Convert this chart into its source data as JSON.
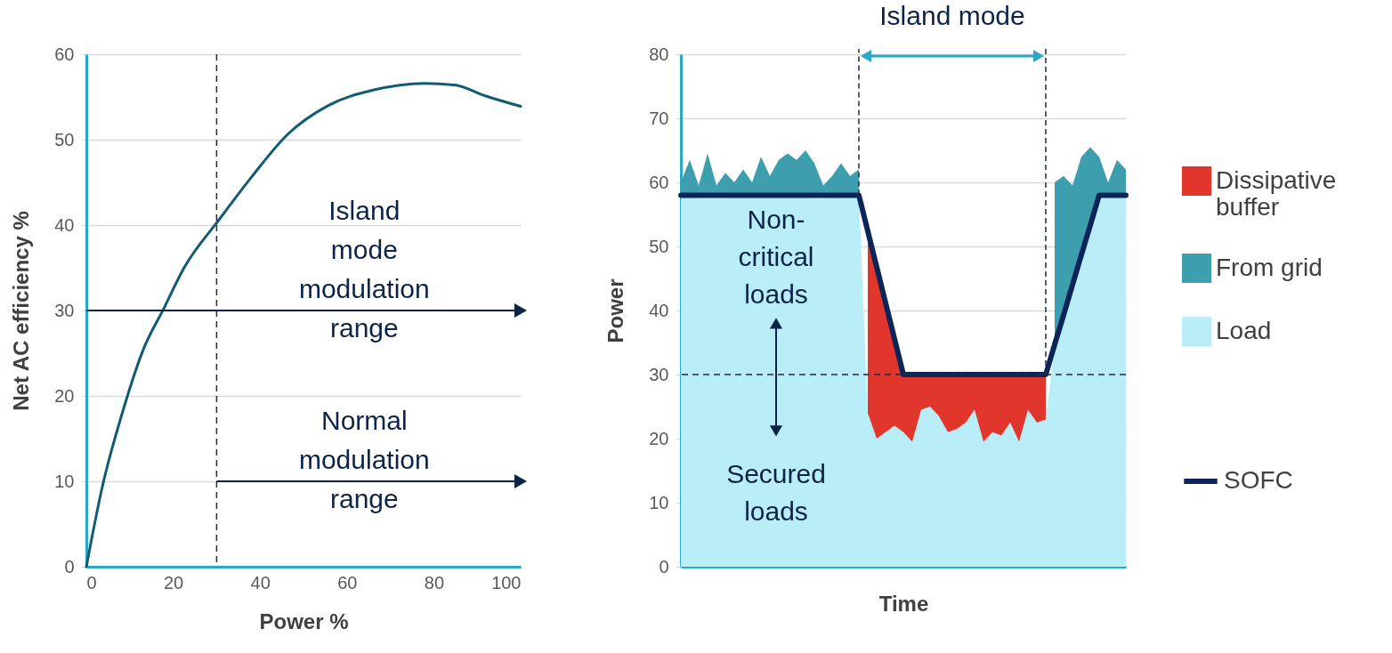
{
  "chart_data": [
    {
      "type": "line",
      "xlabel": "Power %",
      "ylabel": "Net AC efficiency %",
      "xlim": [
        0,
        100
      ],
      "xticks": [
        0,
        20,
        40,
        60,
        80,
        100
      ],
      "ylim": [
        0,
        60
      ],
      "yticks": [
        0,
        10,
        20,
        30,
        40,
        50,
        60
      ],
      "grid": "y",
      "x": [
        0,
        3.7,
        8.4,
        13.1,
        17.8,
        22.5,
        30.5,
        38.3,
        46.3,
        55.7,
        66,
        77.9,
        84.8,
        92,
        100
      ],
      "series": [
        {
          "color": "#115b73",
          "values": [
            0,
            9.4,
            18.2,
            25.4,
            30.2,
            35,
            40.6,
            45.8,
            50.6,
            54,
            55.8,
            56.6,
            56.4,
            55.1,
            53.9
          ]
        }
      ],
      "ref_lines": [
        {
          "axis": "x",
          "value": 30,
          "line_style": "dashed",
          "color": "#1f2d3d"
        }
      ],
      "annotations": [
        "Island mode modulation range",
        "Normal modulation range"
      ]
    },
    {
      "type": "area",
      "stacked": true,
      "xlabel": "Time",
      "ylabel": "Power",
      "ylim": [
        0,
        80
      ],
      "yticks": [
        0,
        10,
        20,
        30,
        40,
        50,
        60,
        70,
        80
      ],
      "grid": "y",
      "tick_labels": "y",
      "legend": "right",
      "categories": [
        null,
        null,
        null,
        null,
        null,
        null,
        null,
        null,
        null,
        null,
        null,
        null,
        null,
        null,
        null,
        null,
        null,
        null,
        null,
        null,
        null,
        null,
        null,
        null,
        null,
        null,
        null,
        null,
        null,
        null,
        null,
        null,
        null,
        null,
        null,
        null,
        null,
        null,
        null,
        null,
        null,
        null,
        null,
        null,
        null,
        null,
        null,
        null,
        null,
        null,
        null
      ],
      "series": [
        {
          "name": "Load",
          "type": "area",
          "color": "#b9eef8",
          "values": [
            58,
            58,
            58,
            58,
            58,
            58,
            58,
            58,
            58,
            58,
            58,
            58,
            58,
            58,
            58,
            58,
            58,
            58,
            58,
            58,
            58,
            24,
            20,
            21,
            22,
            21,
            19.5,
            24.5,
            25,
            23.5,
            21,
            21.5,
            22.5,
            24.5,
            19.5,
            21,
            20.5,
            22.5,
            19.5,
            24.5,
            22.5,
            23,
            34.7,
            39.3,
            44,
            48.7,
            53.3,
            58,
            58,
            58,
            58
          ]
        },
        {
          "name": "From grid",
          "type": "area",
          "color": "#3d9eae",
          "values": [
            2,
            5.5,
            1.5,
            6.5,
            1.5,
            3.5,
            2,
            4,
            2,
            6,
            3,
            5.5,
            6.5,
            5.5,
            7,
            5,
            1.5,
            3,
            5,
            3,
            4,
            null,
            null,
            null,
            null,
            null,
            null,
            null,
            null,
            null,
            null,
            null,
            null,
            null,
            null,
            null,
            null,
            null,
            null,
            null,
            null,
            null,
            25.3,
            21.7,
            15.5,
            15.3,
            12.2,
            6,
            2,
            5.5,
            4
          ]
        },
        {
          "name": "Dissipative buffer",
          "type": "area",
          "color": "#e0362c",
          "values": [
            null,
            null,
            null,
            null,
            null,
            null,
            null,
            null,
            null,
            null,
            null,
            null,
            null,
            null,
            null,
            null,
            null,
            null,
            null,
            null,
            null,
            28.4,
            26.8,
            20.2,
            13.6,
            9,
            10.5,
            5.5,
            5,
            6.5,
            9,
            8.5,
            7.5,
            5.5,
            10.5,
            9,
            9.5,
            7.5,
            10.5,
            5.5,
            7.5,
            7,
            null,
            null,
            null,
            null,
            null,
            null,
            null,
            null,
            null
          ]
        },
        {
          "name": "SOFC",
          "type": "line",
          "color": "#0b2559",
          "values": [
            58,
            58,
            58,
            58,
            58,
            58,
            58,
            58,
            58,
            58,
            58,
            58,
            58,
            58,
            58,
            58,
            58,
            58,
            58,
            58,
            58,
            52.4,
            46.8,
            41.2,
            35.6,
            30,
            30,
            30,
            30,
            30,
            30,
            30,
            30,
            30,
            30,
            30,
            30,
            30,
            30,
            30,
            30,
            30,
            34.7,
            39.3,
            44,
            48.7,
            53.3,
            58,
            58,
            58,
            58
          ]
        }
      ],
      "ref_lines": [
        {
          "axis": "y",
          "value": 30,
          "line_style": "dashed",
          "color": "#1f2d3d"
        }
      ],
      "annotations": [
        "Island mode",
        "Non-critical loads",
        "Secured loads"
      ]
    }
  ]
}
